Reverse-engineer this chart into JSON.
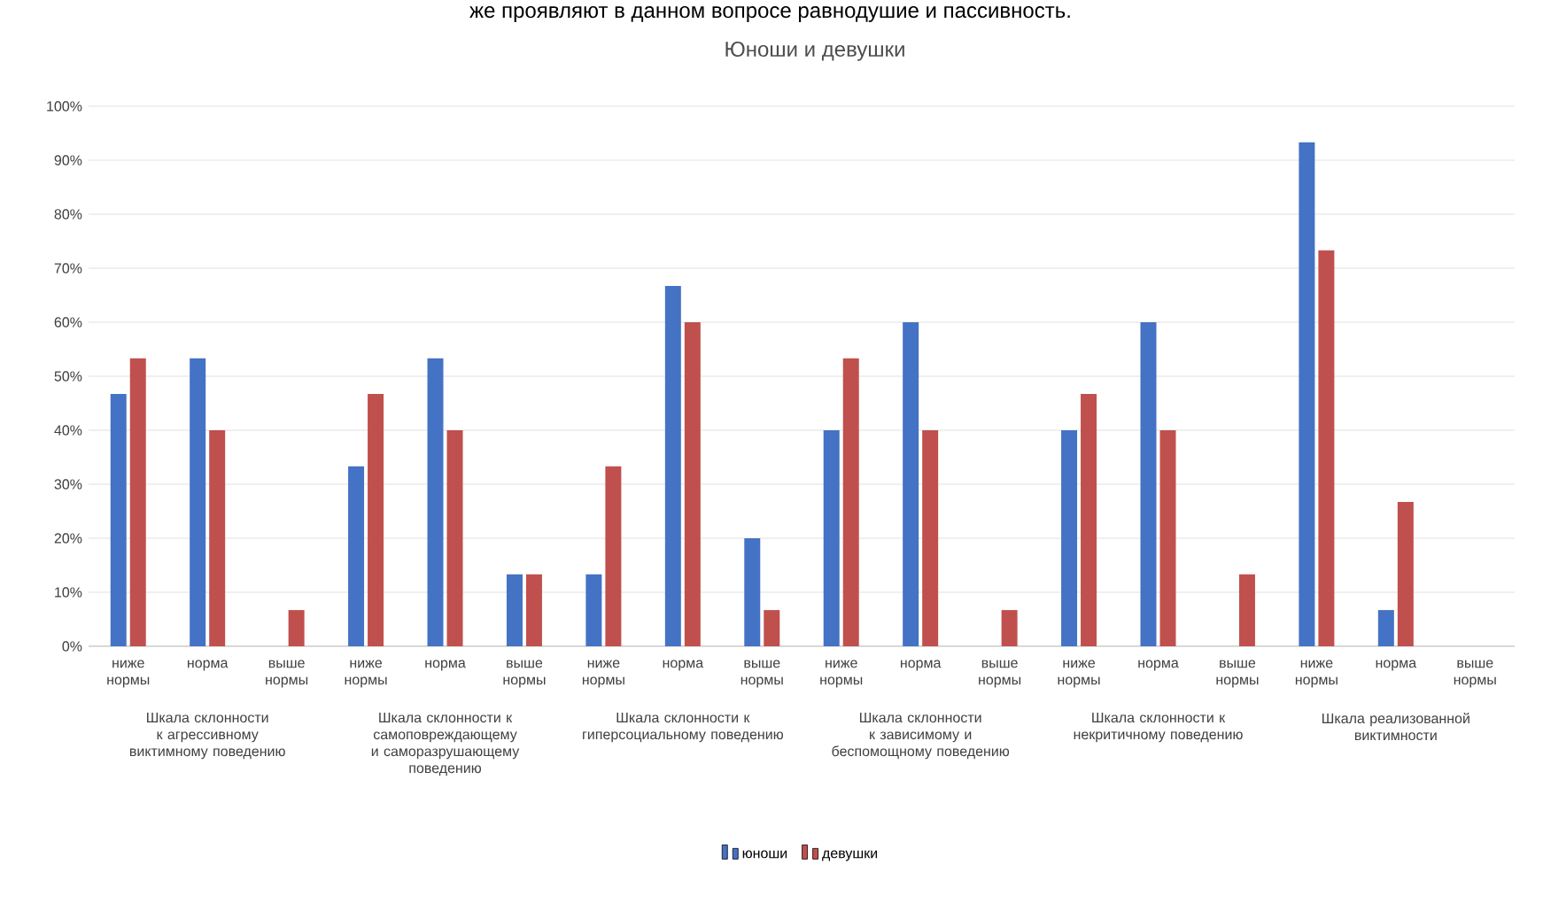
{
  "chart_data": {
    "type": "bar",
    "title": "Юноши и девушки",
    "categories": [
      "ниже нормы",
      "норма",
      "выше нормы",
      "ниже нормы",
      "норма",
      "выше нормы",
      "ниже нормы",
      "норма",
      "выше нормы",
      "ниже нормы",
      "норма",
      "выше нормы",
      "ниже нормы",
      "норма",
      "выше нормы",
      "ниже нормы",
      "норма",
      "выше нормы"
    ],
    "series": [
      {
        "name": "юноши",
        "color": "#4472c4",
        "values": [
          46.7,
          53.3,
          0,
          33.3,
          53.3,
          13.3,
          13.3,
          66.7,
          20,
          40,
          60,
          0,
          40,
          60,
          0,
          93.3,
          6.7,
          0
        ]
      },
      {
        "name": "девушки",
        "color": "#c0504d",
        "values": [
          53.3,
          40,
          6.7,
          46.7,
          40,
          13.3,
          33.3,
          60,
          6.7,
          53.3,
          40,
          6.7,
          46.7,
          40,
          13.3,
          73.3,
          26.7,
          0
        ]
      }
    ],
    "ylim": [
      0,
      100
    ],
    "yticks": [
      {
        "value": 0,
        "label": "0%"
      },
      {
        "value": 10,
        "label": "10%"
      },
      {
        "value": 20,
        "label": "20%"
      },
      {
        "value": 30,
        "label": "30%"
      },
      {
        "value": 40,
        "label": "40%"
      },
      {
        "value": 50,
        "label": "50%"
      },
      {
        "value": 60,
        "label": "60%"
      },
      {
        "value": 70,
        "label": "70%"
      },
      {
        "value": 80,
        "label": "80%"
      },
      {
        "value": 90,
        "label": "90%"
      },
      {
        "value": 100,
        "label": "100%"
      }
    ],
    "grid": "y",
    "legend": "bottom",
    "annotations": [
      "же проявляют в данном вопросе равнодушие и пассивность.",
      "Шкала склонности к агрессивному виктимному поведению",
      "Шкала склонности к самоповреждающему и саморазрушающему поведению",
      "Шкала склонности к гиперсоциальному поведению",
      "Шкала склонности к зависимому и беспомощному поведению",
      "Шкала склонности к некритичному поведению",
      "Шкала реализованной виктимности"
    ]
  }
}
